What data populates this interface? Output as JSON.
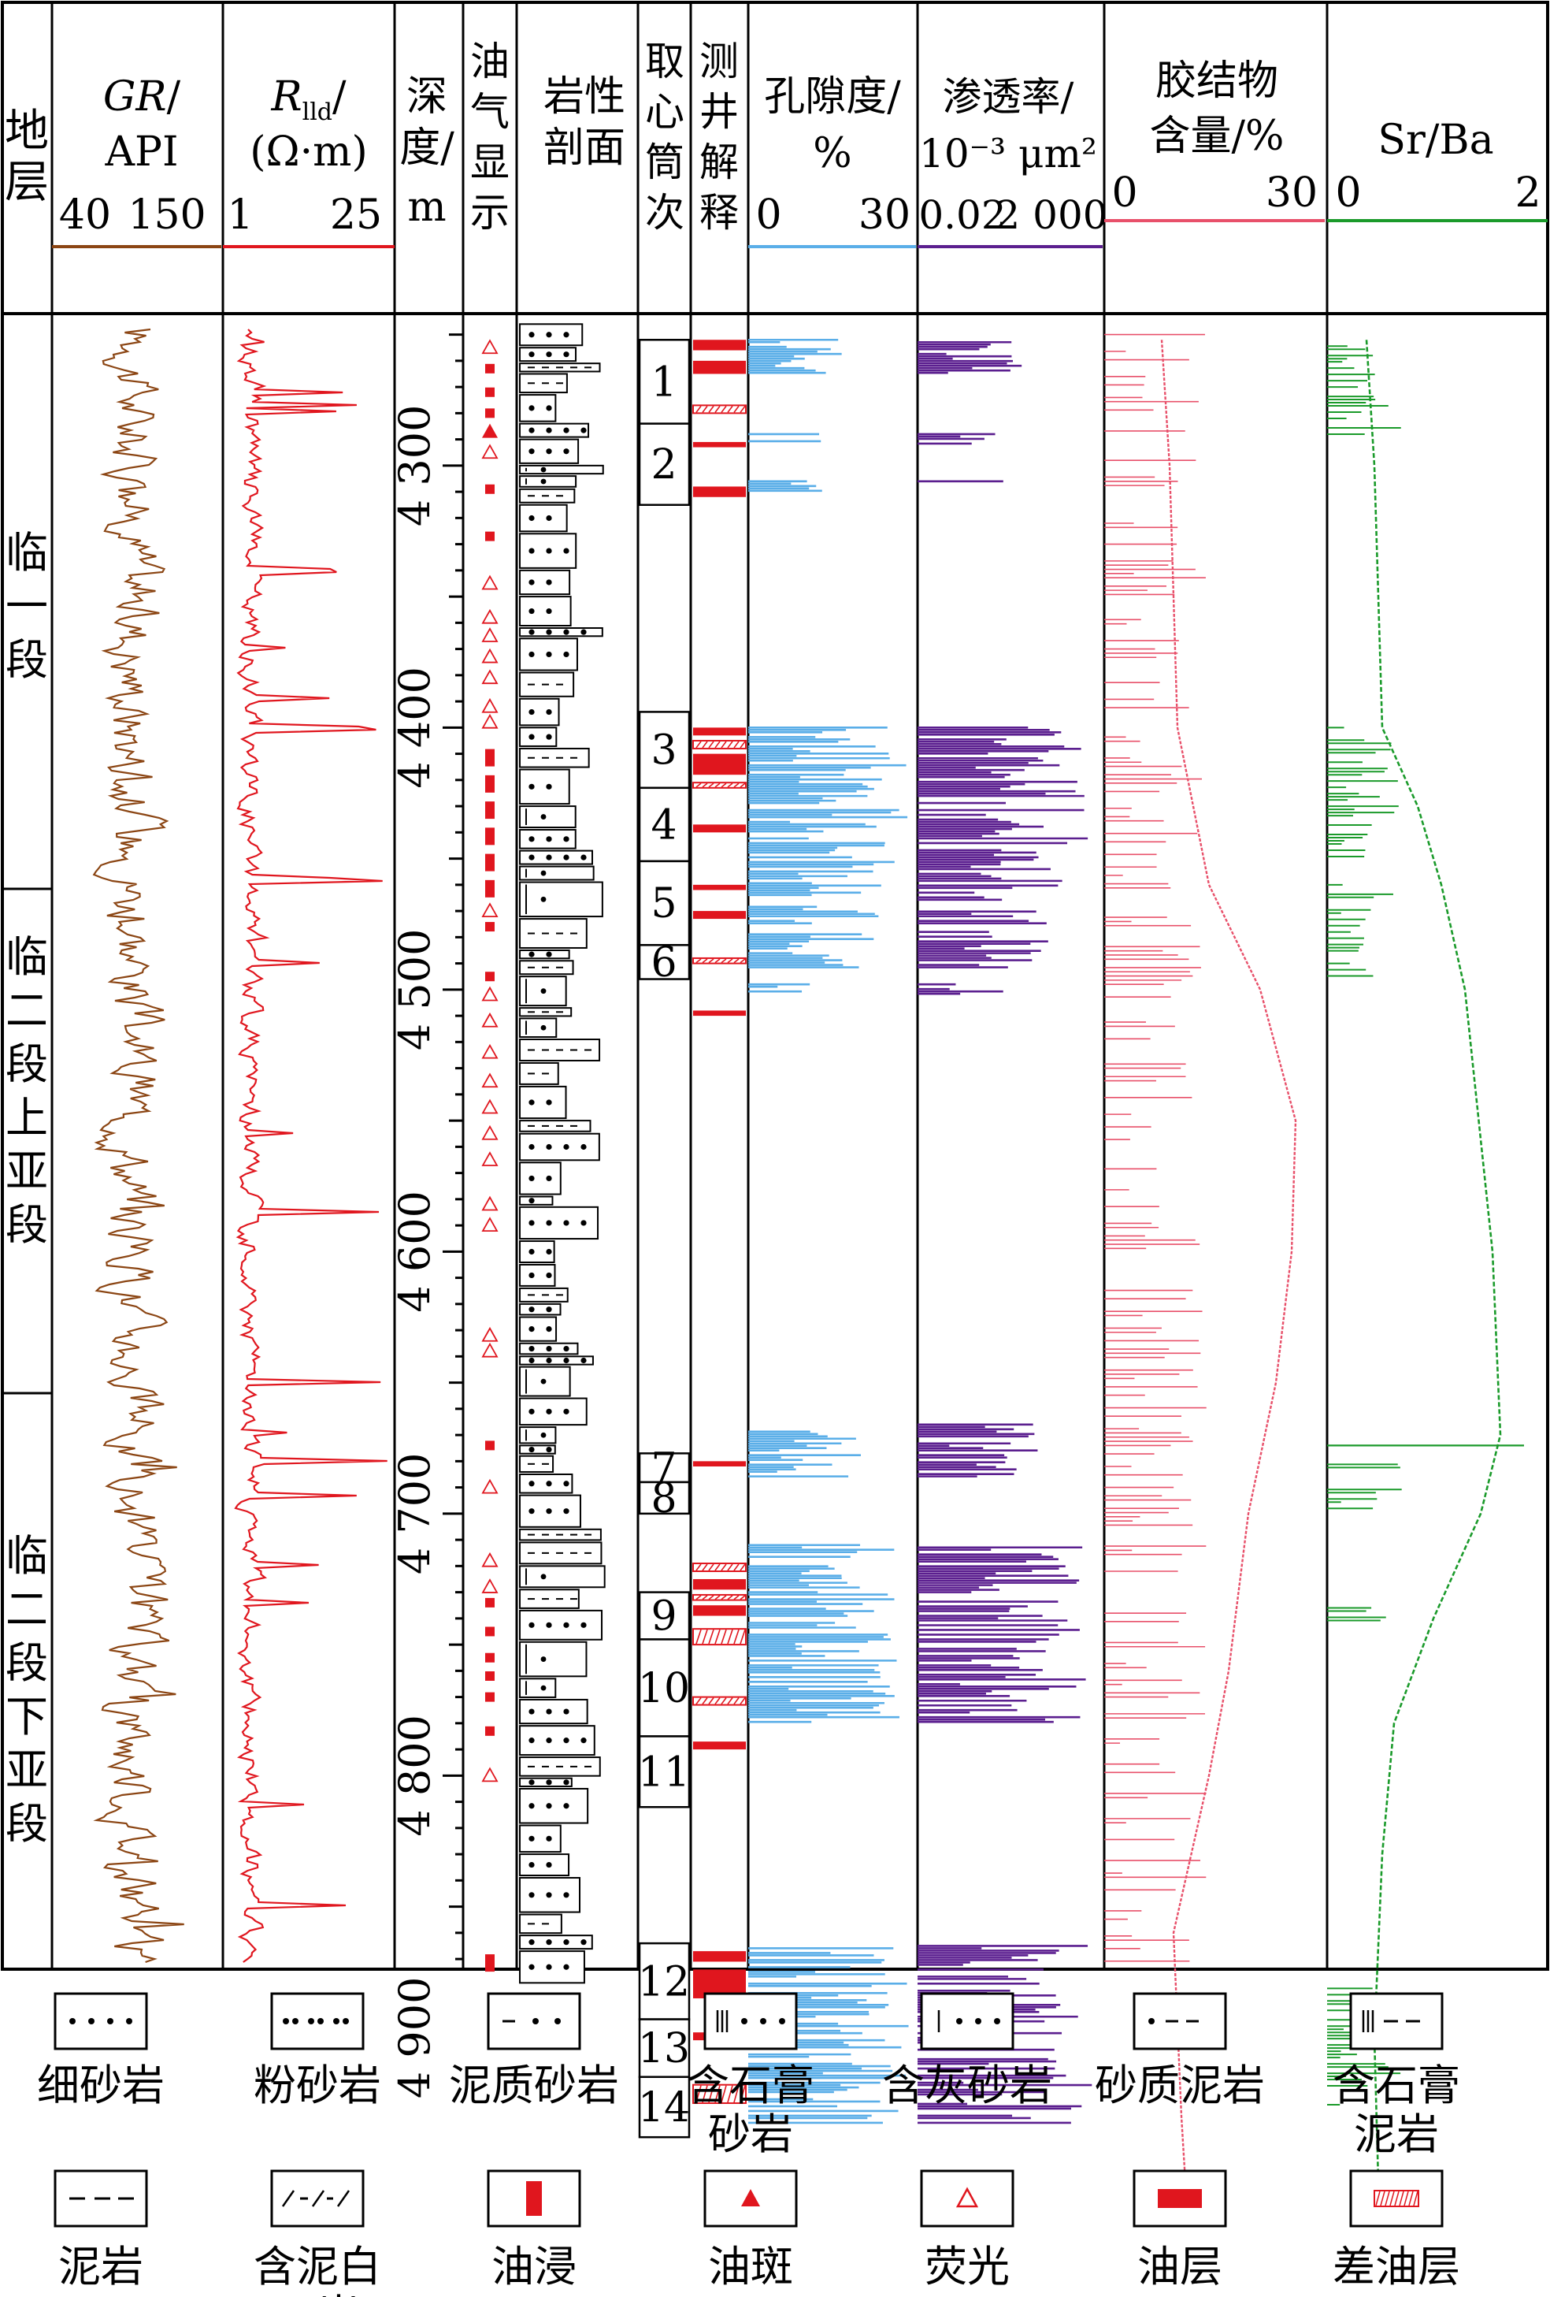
{
  "colors": {
    "gr": "#8b4513",
    "rlld": "#e0161e",
    "oil": "#e0161e",
    "porosity": "#5aaee8",
    "permeability": "#5b1f8f",
    "cement": "#e8506a",
    "srba": "#1a9a2a",
    "grid": "#000000"
  },
  "columns": {
    "stratum": {
      "label_1": "地",
      "label_2": "层"
    },
    "gr": {
      "title": "GR",
      "suffix": "/",
      "unit": "API",
      "min": "40",
      "max": "150"
    },
    "rlld": {
      "title": "R",
      "sub": "lld",
      "suffix": "/",
      "unit": "(Ω·m)",
      "min": "1",
      "max": "25"
    },
    "depth": {
      "label_1": "深",
      "label_2": "度/",
      "label_3": "m"
    },
    "oilshow": {
      "label": [
        "油",
        "气",
        "显",
        "示"
      ]
    },
    "lith": {
      "label_1": "岩性",
      "label_2": "剖面"
    },
    "core": {
      "label": [
        "取",
        "心",
        "筒",
        "次"
      ]
    },
    "interp": {
      "label": [
        "测",
        "井",
        "解",
        "释"
      ]
    },
    "porosity": {
      "label_1": "孔隙度/",
      "label_2": "%",
      "min": "0",
      "max": "30"
    },
    "permeability": {
      "label_1": "渗透率/",
      "label_2": "10⁻³ μm²",
      "min": "0.02",
      "max": "2 000"
    },
    "cement": {
      "label_1": "胶结物",
      "label_2": "含量/%",
      "min": "0",
      "max": "30"
    },
    "srba": {
      "label": "Sr/Ba",
      "min": "0",
      "max": "2"
    }
  },
  "strata": [
    {
      "name": "临一段",
      "chars": [
        "临",
        "一",
        "段"
      ]
    },
    {
      "name": "临二段上亚段",
      "chars": [
        "临",
        "二",
        "段",
        "上",
        "亚",
        "段"
      ]
    },
    {
      "name": "临二段下亚段",
      "chars": [
        "临",
        "二",
        "段",
        "下",
        "亚",
        "段"
      ]
    }
  ],
  "depth_ticks": [
    "4 300",
    "4 400",
    "4 500",
    "4 600",
    "4 700",
    "4 800",
    "4 900"
  ],
  "core_runs": [
    "1",
    "2",
    "3",
    "4",
    "5",
    "6",
    "7",
    "8",
    "9",
    "10",
    "11",
    "12",
    "13",
    "14"
  ],
  "legend": {
    "row1": [
      "细砂岩",
      "粉砂岩",
      "泥质砂岩",
      "含石膏砂岩",
      "含灰砂岩",
      "砂质泥岩",
      "含石膏泥岩"
    ],
    "row2": [
      "泥岩",
      "含泥白云岩",
      "油浸",
      "油斑",
      "荧光",
      "油层",
      "差油层"
    ]
  }
}
